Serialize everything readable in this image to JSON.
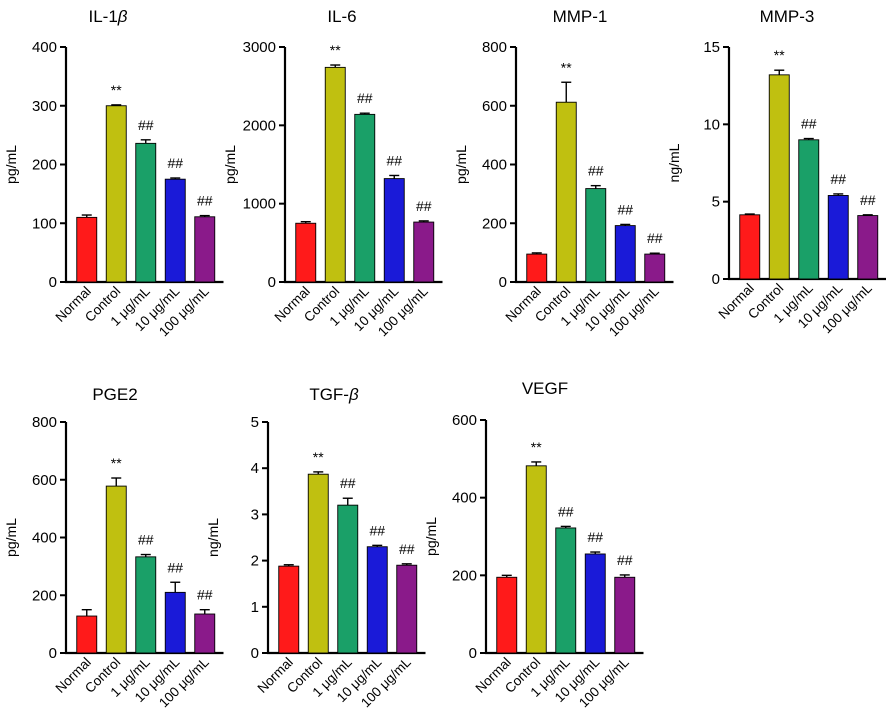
{
  "figure": {
    "categories": [
      "Normal",
      "Control",
      "1 μg/mL",
      "10 μg/mL",
      "100 μg/mL"
    ],
    "bar_colors": [
      "#ff1a1a",
      "#c0c010",
      "#1aa068",
      "#1a1ad8",
      "#8a1a8a"
    ]
  },
  "chart_data": [
    {
      "type": "bar",
      "title": "IL-1β",
      "title_parts": [
        {
          "t": "IL-1",
          "italic": false
        },
        {
          "t": "β",
          "italic": true
        }
      ],
      "ylabel": "pg/mL",
      "ylim": [
        0,
        400
      ],
      "yticks": [
        0,
        100,
        200,
        300,
        400
      ],
      "categories": [
        "Normal",
        "Control",
        "1 μg/mL",
        "10 μg/mL",
        "100 μg/mL"
      ],
      "values": [
        110,
        300,
        236,
        175,
        111
      ],
      "errors": [
        4,
        1.5,
        6,
        2,
        2
      ],
      "annotations": [
        "",
        "**",
        "##",
        "##",
        "##"
      ]
    },
    {
      "type": "bar",
      "title": "IL-6",
      "title_parts": [
        {
          "t": "IL-6",
          "italic": false
        }
      ],
      "ylabel": "pg/mL",
      "ylim": [
        0,
        3000
      ],
      "yticks": [
        0,
        1000,
        2000,
        3000
      ],
      "categories": [
        "Normal",
        "Control",
        "1 μg/mL",
        "10 μg/mL",
        "100 μg/mL"
      ],
      "values": [
        750,
        2740,
        2140,
        1320,
        765
      ],
      "errors": [
        20,
        30,
        15,
        40,
        15
      ],
      "annotations": [
        "",
        "**",
        "##",
        "##",
        "##"
      ]
    },
    {
      "type": "bar",
      "title": "MMP-1",
      "title_parts": [
        {
          "t": "MMP-1",
          "italic": false
        }
      ],
      "ylabel": "pg/mL",
      "ylim": [
        0,
        800
      ],
      "yticks": [
        0,
        200,
        400,
        600,
        800
      ],
      "categories": [
        "Normal",
        "Control",
        "1 μg/mL",
        "10 μg/mL",
        "100 μg/mL"
      ],
      "values": [
        95,
        612,
        318,
        192,
        95
      ],
      "errors": [
        4,
        68,
        10,
        4,
        3
      ],
      "annotations": [
        "",
        "**",
        "##",
        "##",
        "##"
      ]
    },
    {
      "type": "bar",
      "title": "MMP-3",
      "title_parts": [
        {
          "t": "MMP-3",
          "italic": false
        }
      ],
      "ylabel": "ng/mL",
      "ylim": [
        0,
        15
      ],
      "yticks": [
        0,
        5,
        10,
        15
      ],
      "categories": [
        "Normal",
        "Control",
        "1 μg/mL",
        "10 μg/mL",
        "100 μg/mL"
      ],
      "values": [
        4.15,
        13.2,
        9.0,
        5.4,
        4.1
      ],
      "errors": [
        0.05,
        0.3,
        0.08,
        0.1,
        0.05
      ],
      "annotations": [
        "",
        "**",
        "##",
        "##",
        "##"
      ]
    },
    {
      "type": "bar",
      "title": "PGE2",
      "title_parts": [
        {
          "t": "PGE2",
          "italic": false
        }
      ],
      "ylabel": "pg/mL",
      "ylim": [
        0,
        800
      ],
      "yticks": [
        0,
        200,
        400,
        600,
        800
      ],
      "categories": [
        "Normal",
        "Control",
        "1 μg/mL",
        "10 μg/mL",
        "100 μg/mL"
      ],
      "values": [
        128,
        578,
        333,
        210,
        135
      ],
      "errors": [
        22,
        28,
        8,
        35,
        15
      ],
      "annotations": [
        "",
        "**",
        "##",
        "##",
        "##"
      ]
    },
    {
      "type": "bar",
      "title": "TGF-β",
      "title_parts": [
        {
          "t": "TGF-",
          "italic": false
        },
        {
          "t": "β",
          "italic": true
        }
      ],
      "ylabel": "ng/mL",
      "ylim": [
        0,
        5
      ],
      "yticks": [
        0,
        1,
        2,
        3,
        4,
        5
      ],
      "categories": [
        "Normal",
        "Control",
        "1 μg/mL",
        "10 μg/mL",
        "100 μg/mL"
      ],
      "values": [
        1.88,
        3.87,
        3.2,
        2.3,
        1.9
      ],
      "errors": [
        0.03,
        0.05,
        0.15,
        0.03,
        0.03
      ],
      "annotations": [
        "",
        "**",
        "##",
        "##",
        "##"
      ]
    },
    {
      "type": "bar",
      "title": "VEGF",
      "title_parts": [
        {
          "t": "VEGF",
          "italic": false
        }
      ],
      "ylabel": "pg/mL",
      "ylim": [
        0,
        600
      ],
      "yticks": [
        0,
        200,
        400,
        600
      ],
      "categories": [
        "Normal",
        "Control",
        "1 μg/mL",
        "10 μg/mL",
        "100 μg/mL"
      ],
      "values": [
        195,
        482,
        322,
        255,
        195
      ],
      "errors": [
        5,
        10,
        4,
        5,
        6
      ],
      "annotations": [
        "",
        "**",
        "##",
        "##",
        "##"
      ]
    }
  ]
}
